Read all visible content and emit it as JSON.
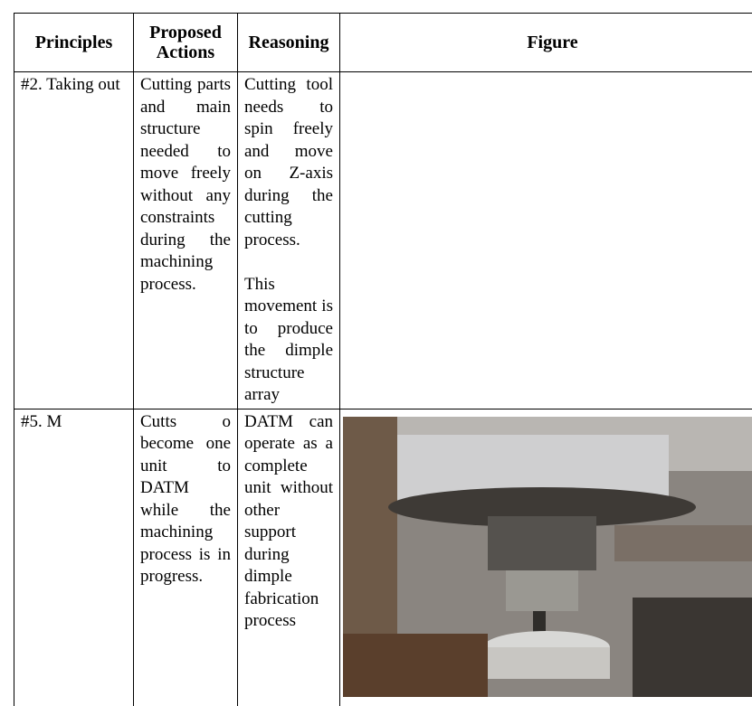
{
  "table": {
    "header": [
      "Principles",
      "Proposed Actions",
      "Reasoning",
      "Figure"
    ],
    "rows": [
      [
        "#2. Taking out",
        "Cutting parts and main structure needed to move freely without any constraints during the machining process.",
        [
          "Cutting tool needs to spin freely and move on Z-axis during the cutting process.",
          "This movement is to produce the dimple structure array"
        ]
      ],
      [
        "#5. M",
        "Cutts o become one unit to DATM while the machining process is in progress.",
        [
          "DATM can operate as a complete unit without other support during dimple fabrication process"
        ]
      ]
    ]
  }
}
